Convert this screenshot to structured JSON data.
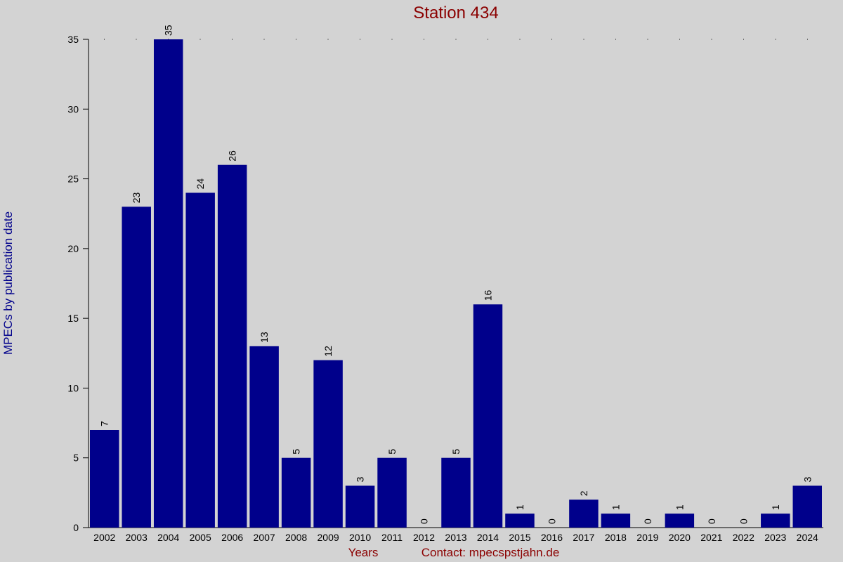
{
  "chart_data": {
    "type": "bar",
    "title": "Station 434",
    "y_label": "MPECs by publication date",
    "x_label": "Years",
    "footer": "Contact: mpecspstjahn.de",
    "categories": [
      "2002",
      "2003",
      "2004",
      "2005",
      "2006",
      "2007",
      "2008",
      "2009",
      "2010",
      "2011",
      "2012",
      "2013",
      "2014",
      "2015",
      "2016",
      "2017",
      "2018",
      "2019",
      "2020",
      "2021",
      "2022",
      "2023",
      "2024"
    ],
    "values": [
      7,
      23,
      35,
      24,
      26,
      13,
      5,
      12,
      3,
      5,
      0,
      5,
      16,
      1,
      0,
      2,
      1,
      0,
      1,
      0,
      0,
      1,
      3
    ],
    "color": "#00008b",
    "ylim": [
      0,
      35
    ],
    "yticks": [
      0,
      5,
      10,
      15,
      20,
      25,
      30,
      35
    ]
  }
}
